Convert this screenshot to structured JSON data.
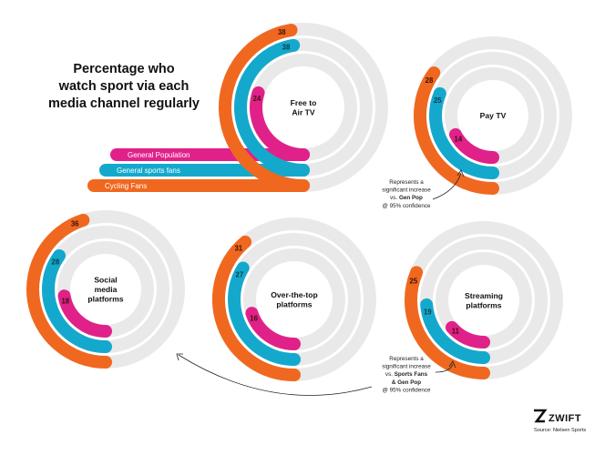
{
  "title_lines": [
    "Percentage who",
    "watch sport via each",
    "media channel regularly"
  ],
  "colors": {
    "general_population": "#e0218a",
    "general_sports_fans": "#14a9cc",
    "cycling_fans": "#f0681f",
    "background_ring": "#e9e9e9",
    "text": "#111111"
  },
  "chart_data": {
    "type": "radial-bar",
    "series_names": [
      "General Population",
      "General sports fans",
      "Cycling Fans"
    ],
    "charts": [
      {
        "name": "Free to Air TV",
        "label_lines": [
          "Free to",
          "Air TV"
        ],
        "values": [
          24,
          38,
          38
        ]
      },
      {
        "name": "Pay TV",
        "label_lines": [
          "Pay TV"
        ],
        "values": [
          14,
          25,
          28
        ]
      },
      {
        "name": "Social media platforms",
        "label_lines": [
          "Social",
          "media",
          "platforms"
        ],
        "values": [
          18,
          28,
          36
        ]
      },
      {
        "name": "Over-the-top platforms",
        "label_lines": [
          "Over-the-top",
          "platforms"
        ],
        "values": [
          16,
          27,
          31
        ]
      },
      {
        "name": "Streaming platforms",
        "label_lines": [
          "Streaming",
          "platforms"
        ],
        "values": [
          11,
          19,
          25
        ]
      }
    ]
  },
  "notes": {
    "note1_lines": [
      [
        {
          "t": "Represents a",
          "b": false
        }
      ],
      [
        {
          "t": "significant increase",
          "b": false
        }
      ],
      [
        {
          "t": "vs. ",
          "b": false
        },
        {
          "t": "Gen Pop",
          "b": true
        }
      ],
      [
        {
          "t": "@ 95% confidence",
          "b": false
        }
      ]
    ],
    "note2_lines": [
      [
        {
          "t": "Represents a",
          "b": false
        }
      ],
      [
        {
          "t": "significant increase",
          "b": false
        }
      ],
      [
        {
          "t": "vs. ",
          "b": false
        },
        {
          "t": "Sports Fans",
          "b": true
        }
      ],
      [
        {
          "t": "& Gen Pop",
          "b": true
        }
      ],
      [
        {
          "t": "@ 95% confidence",
          "b": false
        }
      ]
    ]
  },
  "brand": {
    "name": "ZWIFT",
    "source": "Source: Nielsen Sports"
  }
}
